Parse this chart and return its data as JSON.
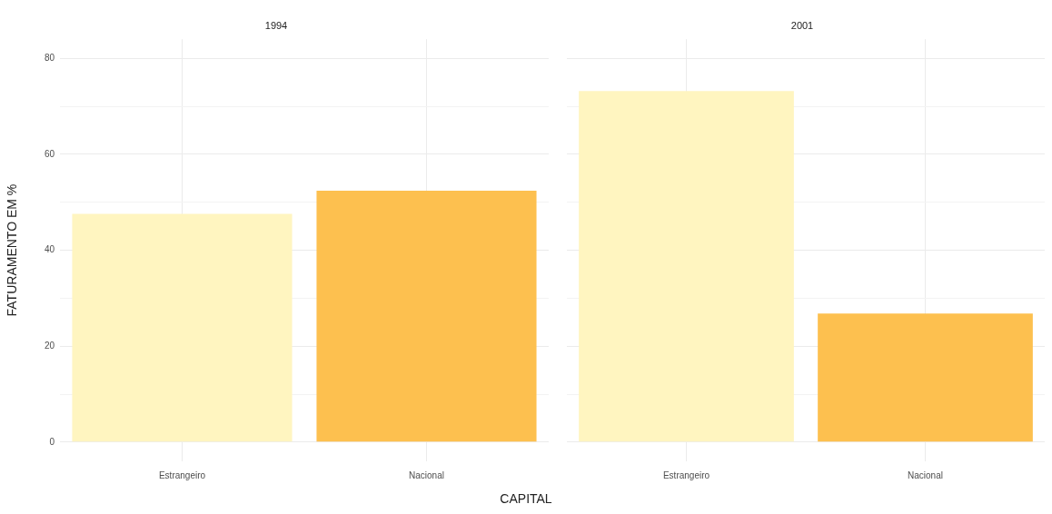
{
  "chart_data": [
    {
      "type": "bar",
      "title": "1994",
      "xlabel": "CAPITAL",
      "ylabel": "FATURAMENTO EM %",
      "categories": [
        "Estrangeiro",
        "Nacional"
      ],
      "values": [
        47.6,
        52.4
      ],
      "colors": [
        "#fff5c0",
        "#fdc04f"
      ],
      "ylim": [
        -4,
        84
      ],
      "yticks": [
        0,
        {
          "value": 10,
          "label": null
        },
        20,
        {
          "value": 30,
          "label": null
        },
        40,
        {
          "value": 50,
          "label": null
        },
        60,
        {
          "value": 70,
          "label": null
        },
        80
      ],
      "grid": true
    },
    {
      "type": "bar",
      "title": "2001",
      "categories": [
        "Estrangeiro",
        "Nacional"
      ],
      "values": [
        73.2,
        26.8
      ],
      "colors": [
        "#fff5c0",
        "#fdc04f"
      ],
      "ylim": [
        -4,
        84
      ],
      "yticks": [
        0,
        {
          "value": 10,
          "label": null
        },
        20,
        {
          "value": 30,
          "label": null
        },
        40,
        {
          "value": 50,
          "label": null
        },
        60,
        {
          "value": 70,
          "label": null
        },
        80
      ],
      "grid": true,
      "tick_labels": "x"
    }
  ]
}
